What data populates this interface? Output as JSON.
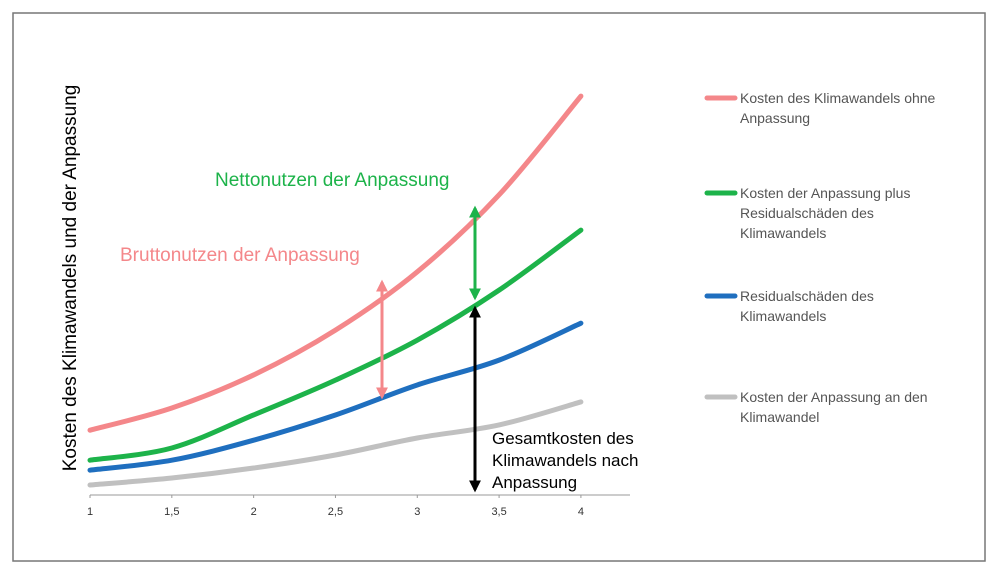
{
  "chart_data": {
    "type": "line",
    "y_label": "Kosten des Klimawandels und der Anpassung",
    "x": [
      1,
      1.5,
      2,
      2.5,
      3,
      3.5,
      4
    ],
    "xlim": [
      1,
      4.3
    ],
    "ylim": [
      0,
      100
    ],
    "xticks": [
      1,
      {
        "value": 1.5,
        "label": "1,5"
      },
      2,
      {
        "value": 2.5,
        "label": "2,5"
      },
      3,
      {
        "value": 3.5,
        "label": "3,5"
      },
      4
    ],
    "series": [
      {
        "name": "Kosten des Klimawandels ohne Anpassung",
        "color": "#f4878a",
        "values": [
          14.9,
          20,
          27.6,
          37.9,
          51.3,
          69,
          91.7
        ]
      },
      {
        "name": "Kosten der Anpassung plus Residualschäden des Klimawandels",
        "color": "#1db34a",
        "values": [
          8,
          10.8,
          18.4,
          26.4,
          35.6,
          47.1,
          60.9
        ]
      },
      {
        "name": "Residualschäden des Klimawandels",
        "color": "#1f6fbf",
        "values": [
          5.7,
          8,
          12.6,
          18.4,
          25.3,
          31,
          39.5
        ]
      },
      {
        "name": "Kosten der Anpassung an den Klimawandel",
        "color": "#c0c0c0",
        "values": [
          2.3,
          3.9,
          6.2,
          9.2,
          13.1,
          16.1,
          21.4
        ]
      }
    ],
    "annotations": [
      "Nettonutzen der Anpassung",
      "Bruttonutzen der Anpassung",
      "Gesamtkosten des Klimawandels nach Anpassung"
    ]
  }
}
